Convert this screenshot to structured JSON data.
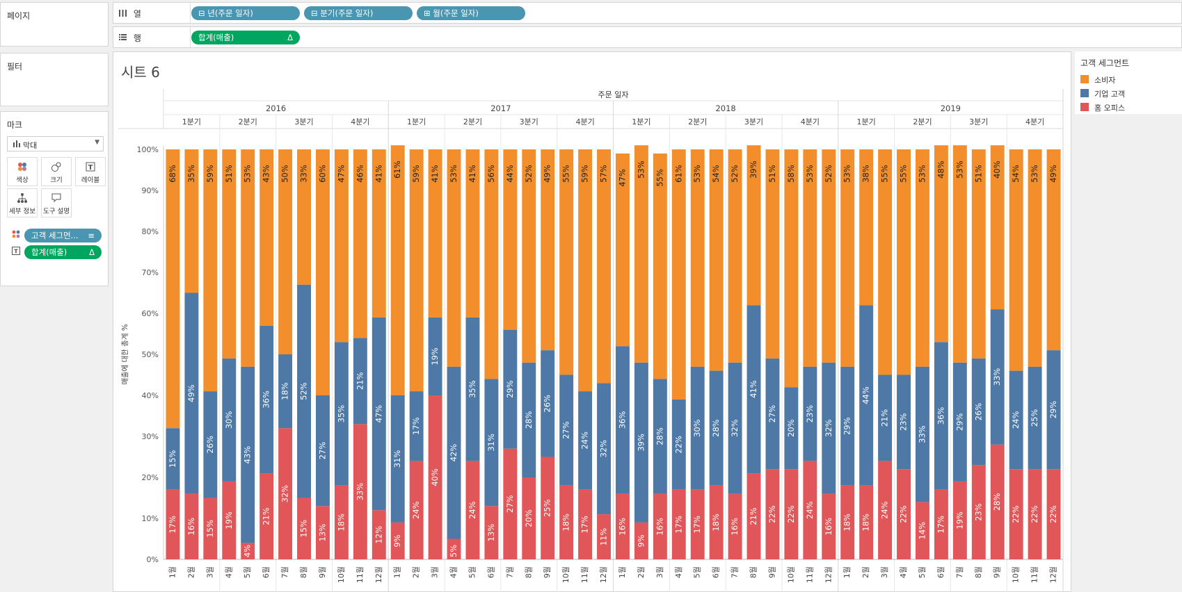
{
  "pages_panel": {
    "title": "페이지"
  },
  "filters_panel": {
    "title": "필터"
  },
  "marks_panel": {
    "title": "마크",
    "mark_type": "막대",
    "buttons": [
      {
        "label": "색상",
        "icon": "color-dots-icon"
      },
      {
        "label": "크기",
        "icon": "size-circles-icon"
      },
      {
        "label": "레이블",
        "icon": "text-label-icon"
      },
      {
        "label": "세부 정보",
        "icon": "detail-tree-icon"
      },
      {
        "label": "도구 설명",
        "icon": "tooltip-bubble-icon"
      }
    ],
    "fields": [
      {
        "label": "고객 세그먼...",
        "suffix": "≡",
        "icon": "color-dots-icon",
        "color": "#4996b2"
      },
      {
        "label": "합계(매출)",
        "suffix": "Δ",
        "icon": "text-label-icon",
        "color": "#00a65f"
      }
    ]
  },
  "shelves": {
    "columns": {
      "label": "열",
      "icon": "column-bars-icon",
      "pills": [
        {
          "label": "⊟ 년(주문 일자)"
        },
        {
          "label": "⊟ 분기(주문 일자)"
        },
        {
          "label": "⊞ 월(주문 일자)"
        }
      ]
    },
    "rows": {
      "label": "행",
      "icon": "row-list-icon",
      "pills": [
        {
          "label": "합계(매출)",
          "suffix": "Δ"
        }
      ]
    }
  },
  "sheet": {
    "title": "시트 6"
  },
  "legend": {
    "title": "고객 세그먼트",
    "items": [
      {
        "label": "소비자",
        "color": "#f28e2b"
      },
      {
        "label": "기업 고객",
        "color": "#4e79a7"
      },
      {
        "label": "홈 오피스",
        "color": "#e15759"
      }
    ]
  },
  "chart_data": {
    "type": "bar",
    "stacked": true,
    "normalized_100": true,
    "header_title": "주문 일자",
    "ylabel": "매출에 대한 총계 %",
    "ylim": [
      0,
      100
    ],
    "yticks": [
      "0%",
      "10%",
      "20%",
      "30%",
      "40%",
      "50%",
      "60%",
      "70%",
      "80%",
      "90%",
      "100%"
    ],
    "years": [
      "2016",
      "2017",
      "2018",
      "2019"
    ],
    "quarters": [
      "1분기",
      "2분기",
      "3분기",
      "4분기"
    ],
    "months": [
      "1월",
      "2월",
      "3월",
      "4월",
      "5월",
      "6월",
      "7월",
      "8월",
      "9월",
      "10월",
      "11월",
      "12월"
    ],
    "series": [
      {
        "name": "홈 오피스",
        "color": "#e15759",
        "values": [
          17,
          16,
          15,
          19,
          4,
          21,
          32,
          15,
          13,
          18,
          33,
          12,
          9,
          24,
          40,
          5,
          24,
          13,
          27,
          20,
          25,
          18,
          17,
          11,
          16,
          9,
          16,
          17,
          17,
          18,
          16,
          21,
          22,
          22,
          24,
          16,
          18,
          18,
          24,
          22,
          14,
          17,
          19,
          23,
          28,
          22,
          22,
          22
        ]
      },
      {
        "name": "기업 고객",
        "color": "#4e79a7",
        "values": [
          15,
          49,
          26,
          30,
          43,
          36,
          18,
          52,
          27,
          35,
          21,
          47,
          31,
          17,
          19,
          42,
          35,
          31,
          29,
          28,
          26,
          27,
          24,
          32,
          36,
          39,
          28,
          22,
          30,
          28,
          32,
          41,
          27,
          20,
          23,
          32,
          29,
          44,
          21,
          23,
          33,
          36,
          29,
          26,
          33,
          24,
          25,
          29
        ]
      },
      {
        "name": "소비자",
        "color": "#f28e2b",
        "values": [
          68,
          35,
          59,
          51,
          53,
          43,
          50,
          33,
          60,
          47,
          46,
          41,
          61,
          59,
          41,
          53,
          41,
          56,
          44,
          52,
          49,
          55,
          59,
          57,
          47,
          53,
          55,
          61,
          53,
          54,
          52,
          39,
          51,
          58,
          53,
          52,
          53,
          38,
          55,
          55,
          53,
          48,
          53,
          51,
          40,
          54,
          53,
          49
        ]
      }
    ]
  }
}
